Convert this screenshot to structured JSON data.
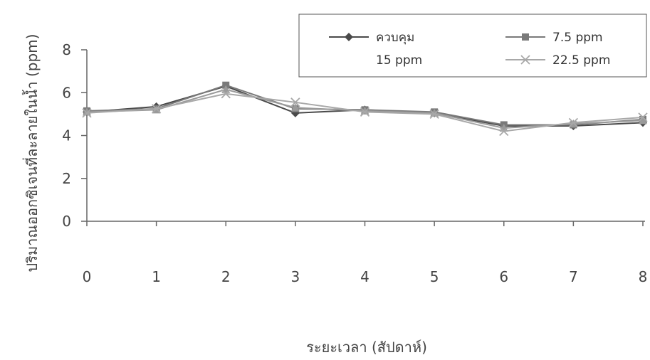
{
  "chart_data": {
    "type": "line",
    "title": "",
    "xlabel": "ระยะเวลา (สัปดาห์)",
    "ylabel": "ปริมาณออกซิเจนที่ละลายในน้ำ (ppm)",
    "x": [
      0,
      1,
      2,
      3,
      4,
      5,
      6,
      7,
      8
    ],
    "xlim": [
      0,
      8
    ],
    "ylim": [
      0,
      8
    ],
    "yticks": [
      0,
      2,
      4,
      6,
      8
    ],
    "grid": false,
    "legend_position": "top-right",
    "series": [
      {
        "name": "ควบคุม",
        "marker": "diamond",
        "color": "#4a4a4a",
        "values": [
          5.1,
          5.35,
          6.3,
          5.05,
          5.2,
          5.05,
          4.45,
          4.45,
          4.6
        ]
      },
      {
        "name": "7.5 ppm",
        "marker": "square",
        "color": "#7a7a7a",
        "values": [
          5.15,
          5.25,
          6.35,
          5.25,
          5.2,
          5.1,
          4.5,
          4.5,
          4.75
        ]
      },
      {
        "name": "15 ppm",
        "marker": "triangle",
        "color": "#9a9a9a",
        "values": [
          5.1,
          5.2,
          6.15,
          5.3,
          5.15,
          5.05,
          4.35,
          4.55,
          4.7
        ]
      },
      {
        "name": "22.5 ppm",
        "marker": "x",
        "color": "#a8a8a8",
        "values": [
          5.05,
          5.25,
          5.95,
          5.55,
          5.1,
          5.0,
          4.2,
          4.6,
          4.85
        ]
      }
    ]
  }
}
